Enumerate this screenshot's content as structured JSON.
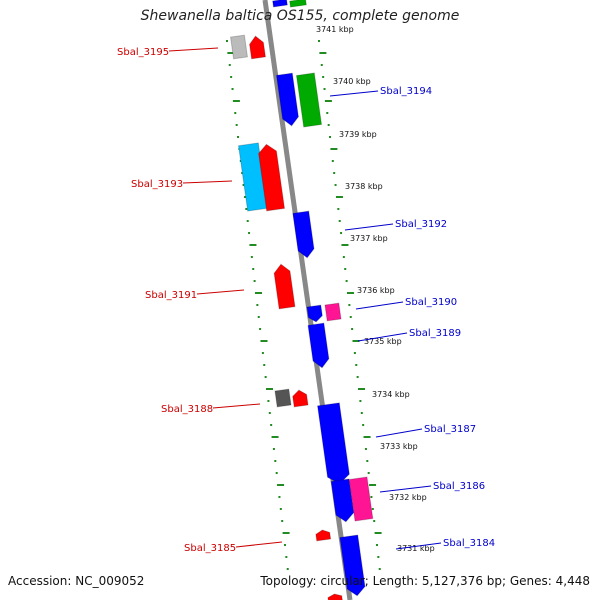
{
  "title": "Shewanella baltica OS155, complete genome",
  "accession": "Accession: NC_009052",
  "topology": "Topology: circular; Length: 5,127,376 bp; Genes: 4,448",
  "colors": {
    "forward_label": "#cc0000",
    "reverse_label": "#0000cc",
    "backbone": "#888888",
    "track_dots": "#228b22",
    "cds_forward": "#ff0000",
    "cds_reverse": "#0000ff",
    "rna": "#00aa00",
    "cyan": "#00bfff",
    "magenta": "#ff1493",
    "gray": "#bbbbbb",
    "dark_gray": "#555555"
  },
  "ticks": [
    {
      "label": "3741 kbp"
    },
    {
      "label": "3740 kbp"
    },
    {
      "label": "3739 kbp"
    },
    {
      "label": "3738 kbp"
    },
    {
      "label": "3737 kbp"
    },
    {
      "label": "3736 kbp"
    },
    {
      "label": "3735 kbp"
    },
    {
      "label": "3734 kbp"
    },
    {
      "label": "3733 kbp"
    },
    {
      "label": "3732 kbp"
    },
    {
      "label": "3731 kbp"
    }
  ],
  "gene_labels_left": [
    "Sbal_3195",
    "Sbal_3193",
    "Sbal_3191",
    "Sbal_3188",
    "Sbal_3185"
  ],
  "gene_labels_right": [
    "Sbal_3194",
    "Sbal_3192",
    "Sbal_3190",
    "Sbal_3189",
    "Sbal_3187",
    "Sbal_3186",
    "Sbal_3184"
  ]
}
